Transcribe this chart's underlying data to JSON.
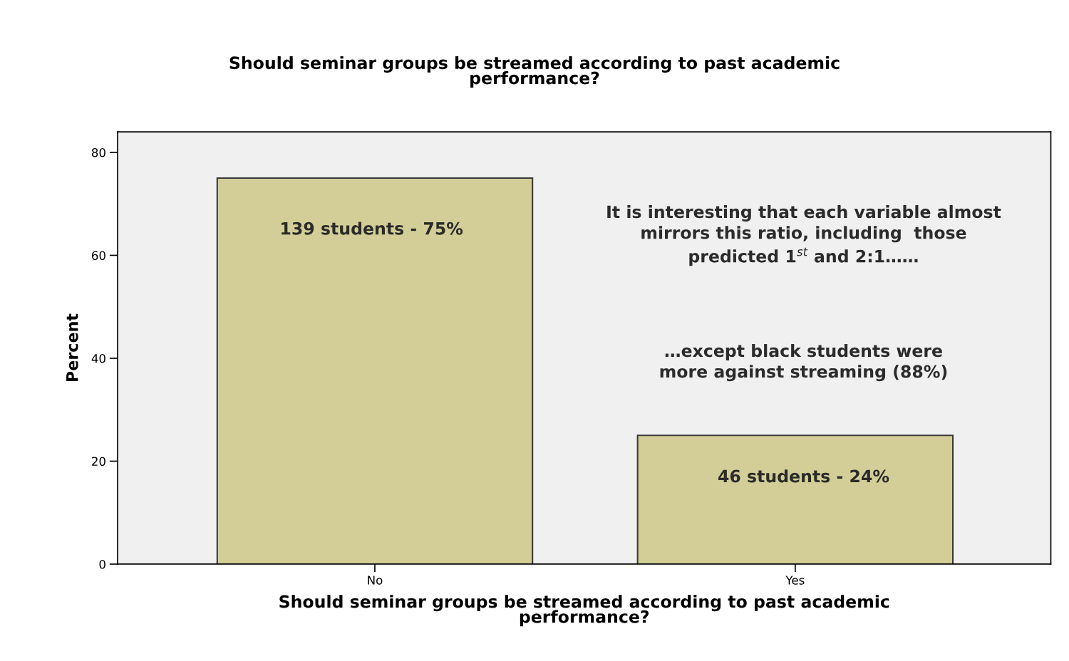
{
  "chart_data": {
    "type": "bar",
    "title": "Should seminar groups be streamed according to past academic\nperformance?",
    "xlabel": "Should seminar groups be streamed according to past academic\nperformance?",
    "ylabel": "Percent",
    "categories": [
      "No",
      "Yes"
    ],
    "values": [
      75,
      25
    ],
    "color": "#d3ce97",
    "ylim": [
      0,
      84
    ],
    "yticks": [
      0,
      20,
      40,
      60,
      80
    ],
    "grid": false,
    "annotations": [
      "139 students - 75%",
      "46 students - 24%",
      "It is interesting that each variable almost\nmirrors this ratio, including  those\npredicted 1$^{st}$ and 2:1……",
      "…except black students were\nmore against streaming (88%)"
    ]
  }
}
